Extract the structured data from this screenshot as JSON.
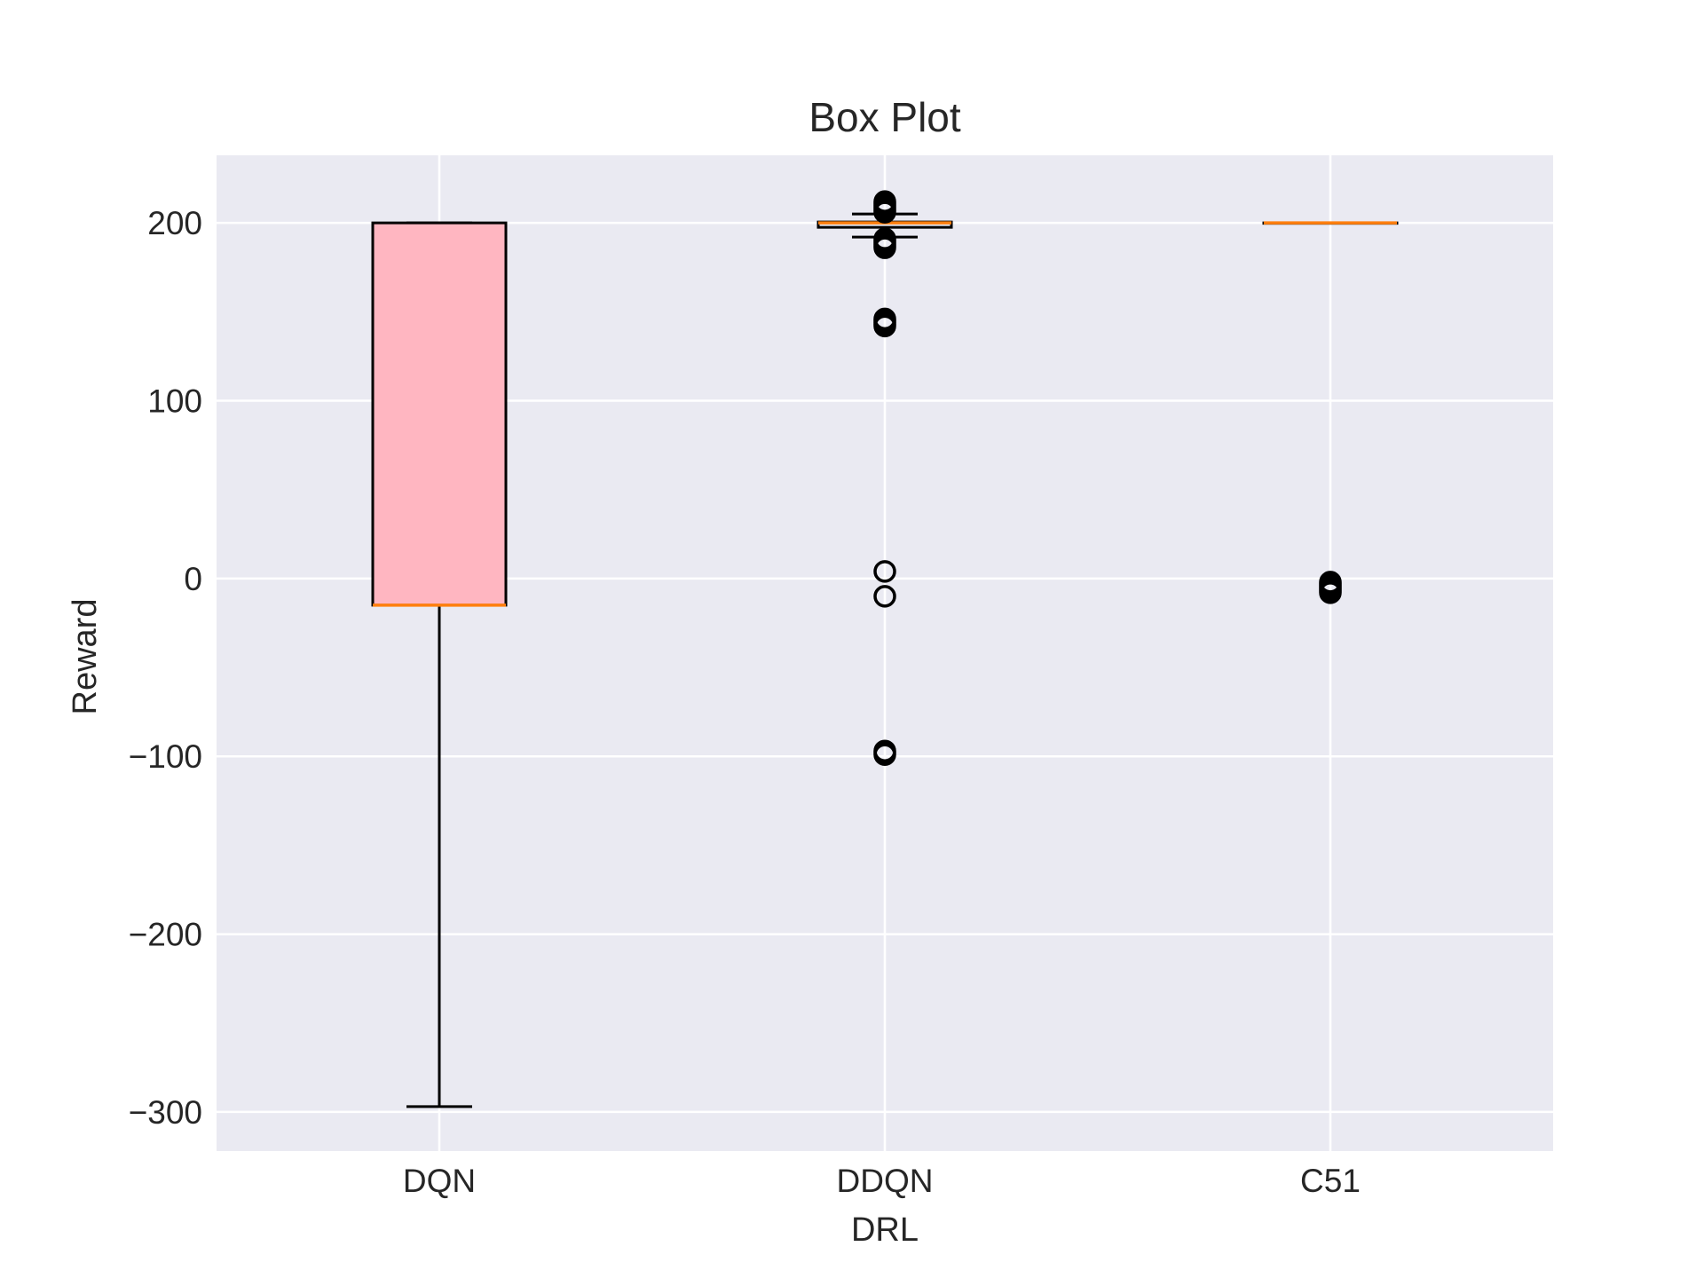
{
  "chart_data": {
    "type": "box",
    "title": "Box Plot",
    "xlabel": "DRL",
    "ylabel": "Reward",
    "ylim": [
      -322,
      238
    ],
    "yticks": [
      -300,
      -200,
      -100,
      0,
      100,
      200
    ],
    "ytick_labels": [
      "−300",
      "−200",
      "−100",
      "0",
      "100",
      "200"
    ],
    "grid": true,
    "categories": [
      "DQN",
      "DDQN",
      "C51"
    ],
    "boxes": [
      {
        "name": "DQN",
        "whisker_low": -297,
        "q1": -15,
        "median": -15,
        "q3": 200,
        "whisker_high": 200,
        "outliers": [],
        "fill": "#ffb6c1"
      },
      {
        "name": "DDQN",
        "whisker_low": 192,
        "q1": 197.5,
        "median": 200,
        "q3": 200.5,
        "whisker_high": 205,
        "outliers": [
          212,
          211,
          210,
          209,
          208,
          207,
          206,
          191,
          190,
          189,
          188,
          187,
          186,
          146,
          145,
          144,
          143,
          142,
          4,
          -10,
          -97,
          -98,
          -99
        ],
        "fill": "#eaeaf2"
      },
      {
        "name": "C51",
        "whisker_low": 200,
        "q1": 200,
        "median": 200,
        "q3": 200,
        "whisker_high": 200,
        "outliers": [
          -2,
          -3,
          -4,
          -5,
          -6,
          -7,
          -8
        ],
        "fill": "#eaeaf2"
      }
    ],
    "colors": {
      "plot_background": "#eaeaf2",
      "grid": "#ffffff",
      "box_edge": "#000000",
      "median": "#ff7f0e",
      "text": "#262626"
    }
  }
}
